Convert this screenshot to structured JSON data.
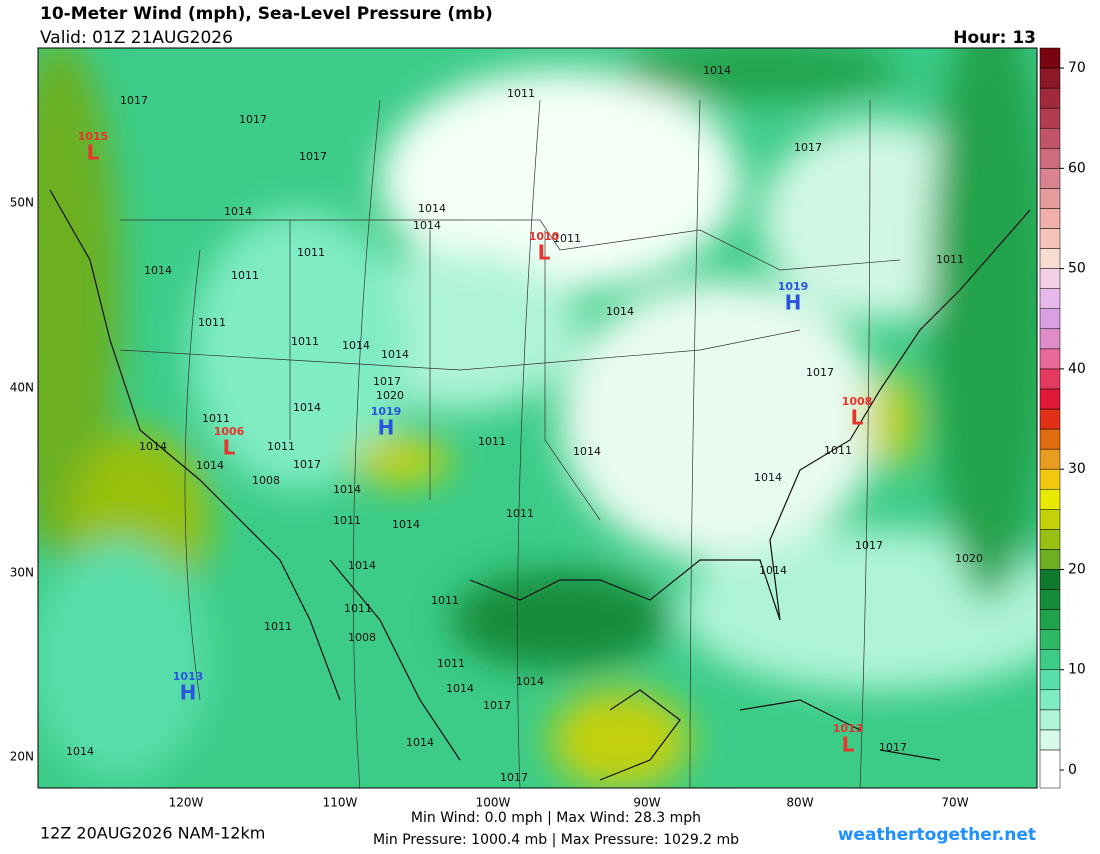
{
  "header": {
    "title": "10-Meter Wind (mph), Sea-Level Pressure (mb)",
    "valid": "Valid: 01Z 21AUG2026",
    "hour": "Hour: 13"
  },
  "map": {
    "lon_labels": [
      "120W",
      "110W",
      "100W",
      "90W",
      "80W",
      "70W"
    ],
    "lat_labels": [
      "20N",
      "30N",
      "40N",
      "50N"
    ],
    "centers": [
      {
        "letter": "L",
        "value": "1015",
        "color": "#e8342c"
      },
      {
        "letter": "L",
        "value": "1010",
        "color": "#e8342c"
      },
      {
        "letter": "H",
        "value": "1019",
        "color": "#2a54e0"
      },
      {
        "letter": "H",
        "value": "1019",
        "color": "#2a54e0"
      },
      {
        "letter": "L",
        "value": "1006",
        "color": "#e8342c"
      },
      {
        "letter": "L",
        "value": "1008",
        "color": "#e8342c"
      },
      {
        "letter": "H",
        "value": "1013",
        "color": "#2a54e0"
      },
      {
        "letter": "L",
        "value": "1013",
        "color": "#e8342c"
      }
    ],
    "isobar_labels": [
      "1014",
      "1011",
      "1017",
      "1017",
      "1017",
      "1017",
      "1014",
      "1014",
      "1014",
      "1011",
      "1011",
      "1014",
      "1011",
      "1011",
      "1014",
      "1011",
      "1011",
      "1014",
      "1014",
      "1017",
      "1020",
      "1017",
      "1014",
      "1011",
      "1014",
      "1011",
      "1011",
      "1014",
      "1014",
      "1017",
      "1014",
      "1008",
      "1014",
      "1011",
      "1011",
      "1014",
      "1011",
      "1017",
      "1020",
      "1014",
      "1014",
      "1011",
      "1011",
      "1011",
      "1008",
      "1011",
      "1014",
      "1014",
      "1017",
      "1014",
      "1014",
      "1017",
      "1017"
    ]
  },
  "colorbar": {
    "range": [
      0,
      72
    ],
    "ticks": [
      0,
      10,
      20,
      30,
      40,
      50,
      60,
      70
    ],
    "colors": [
      "#ffffff",
      "#d8faea",
      "#b0f4d8",
      "#80ecc4",
      "#58deaa",
      "#3ccc88",
      "#2cb866",
      "#20a24c",
      "#168c3a",
      "#0e7a2e",
      "#6cb020",
      "#98c010",
      "#c4d008",
      "#e8e800",
      "#f0c810",
      "#e89c20",
      "#e06c10",
      "#e03018",
      "#e01838",
      "#e43a60",
      "#e86a98",
      "#e08cc8",
      "#d8a0e0",
      "#e8b8ec",
      "#f4d0e8",
      "#f8dcd0",
      "#f4c4b8",
      "#eeb0a8",
      "#e49c9c",
      "#d88490",
      "#cc6c7c",
      "#c05468",
      "#b03c50",
      "#a02a3c",
      "#8c1828",
      "#780410"
    ]
  },
  "footer": {
    "run": "12Z 20AUG2026 NAM-12km",
    "wind": "Min Wind:   0.0 mph | Max Wind:  28.3 mph",
    "pressure": "Min Pressure: 1000.4 mb | Max Pressure: 1029.2 mb",
    "site": "weathertogether.net"
  }
}
